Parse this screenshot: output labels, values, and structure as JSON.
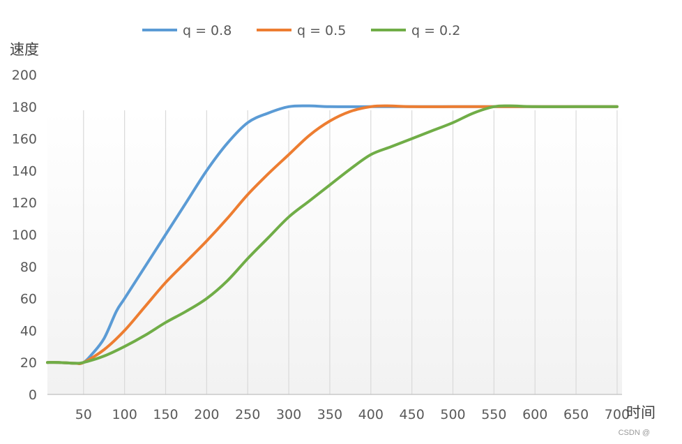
{
  "chart_data": {
    "type": "line",
    "xlabel": "时间",
    "ylabel": "速度",
    "x_ticks": [
      50,
      100,
      150,
      200,
      250,
      300,
      350,
      400,
      450,
      500,
      550,
      600,
      650,
      700
    ],
    "y_ticks": [
      0,
      20,
      40,
      60,
      80,
      100,
      120,
      140,
      160,
      180,
      200
    ],
    "xlim": [
      6,
      706
    ],
    "ylim": [
      0,
      200
    ],
    "grid": "vertical",
    "legend": "top",
    "series": [
      {
        "name": "q = 0.8",
        "color": "#5b9bd5",
        "points": [
          [
            6,
            20
          ],
          [
            20,
            20
          ],
          [
            40,
            19.5
          ],
          [
            50,
            20
          ],
          [
            60,
            25
          ],
          [
            75,
            35
          ],
          [
            90,
            52
          ],
          [
            100,
            60
          ],
          [
            125,
            80
          ],
          [
            150,
            100
          ],
          [
            175,
            120
          ],
          [
            200,
            140
          ],
          [
            225,
            157
          ],
          [
            250,
            170
          ],
          [
            275,
            176
          ],
          [
            300,
            180
          ],
          [
            325,
            180.5
          ],
          [
            350,
            180
          ],
          [
            400,
            180
          ],
          [
            450,
            180
          ],
          [
            500,
            180
          ],
          [
            550,
            180
          ],
          [
            600,
            180
          ],
          [
            650,
            180
          ],
          [
            700,
            180
          ]
        ]
      },
      {
        "name": "q = 0.5",
        "color": "#ed7d31",
        "points": [
          [
            6,
            20
          ],
          [
            20,
            20
          ],
          [
            40,
            19.5
          ],
          [
            50,
            20
          ],
          [
            75,
            28
          ],
          [
            100,
            40
          ],
          [
            125,
            55
          ],
          [
            150,
            70
          ],
          [
            175,
            83
          ],
          [
            200,
            96
          ],
          [
            225,
            110
          ],
          [
            250,
            125
          ],
          [
            275,
            138
          ],
          [
            300,
            150
          ],
          [
            325,
            162
          ],
          [
            350,
            171
          ],
          [
            375,
            177
          ],
          [
            400,
            180
          ],
          [
            420,
            180.5
          ],
          [
            450,
            180
          ],
          [
            500,
            180
          ],
          [
            550,
            180
          ],
          [
            600,
            180
          ],
          [
            650,
            180
          ],
          [
            700,
            180
          ]
        ]
      },
      {
        "name": "q = 0.2",
        "color": "#70ad47",
        "points": [
          [
            6,
            20
          ],
          [
            20,
            20
          ],
          [
            40,
            19.5
          ],
          [
            50,
            20
          ],
          [
            75,
            24
          ],
          [
            100,
            30
          ],
          [
            125,
            37
          ],
          [
            150,
            45
          ],
          [
            175,
            52
          ],
          [
            200,
            60
          ],
          [
            225,
            71
          ],
          [
            250,
            85
          ],
          [
            275,
            98
          ],
          [
            300,
            111
          ],
          [
            325,
            121
          ],
          [
            350,
            131
          ],
          [
            375,
            141
          ],
          [
            400,
            150
          ],
          [
            425,
            155
          ],
          [
            450,
            160
          ],
          [
            475,
            165
          ],
          [
            500,
            170
          ],
          [
            525,
            176
          ],
          [
            550,
            180
          ],
          [
            570,
            180.5
          ],
          [
            600,
            180
          ],
          [
            650,
            180
          ],
          [
            700,
            180
          ]
        ]
      }
    ]
  },
  "watermark": "CSDN @"
}
